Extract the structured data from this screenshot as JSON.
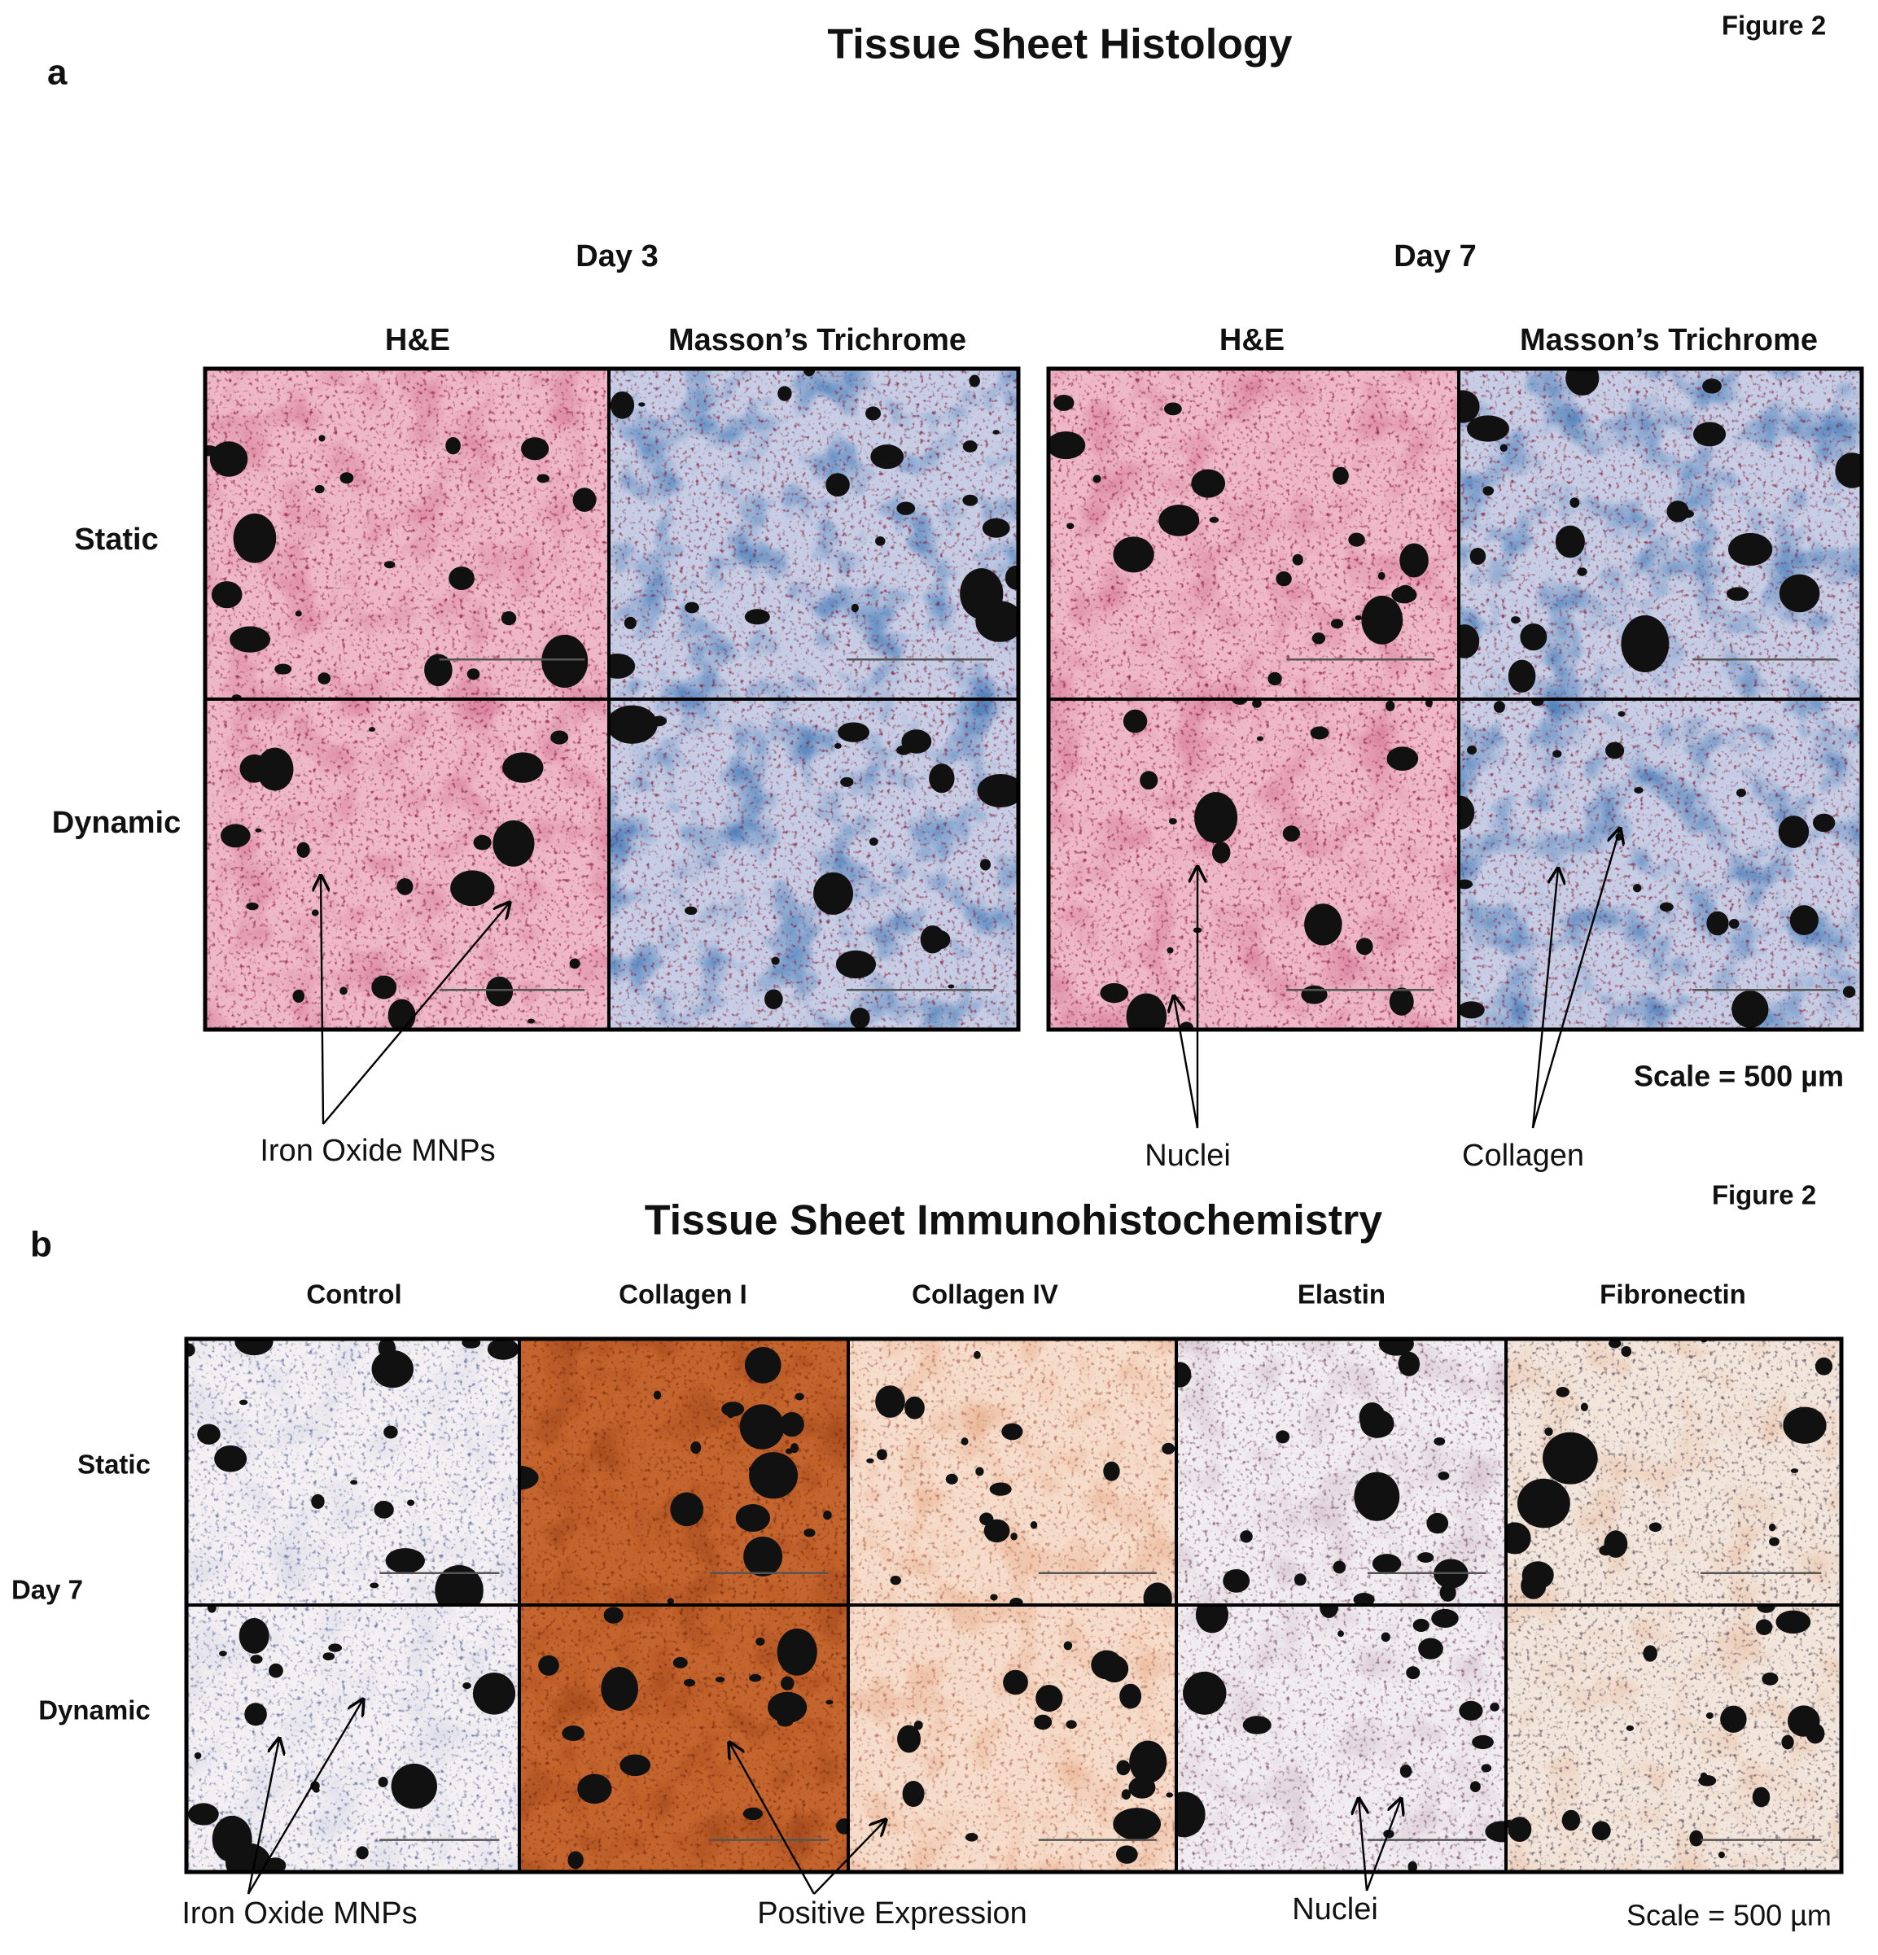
{
  "panel_a": {
    "label": "a",
    "title": "Tissue Sheet Histology",
    "figure_label": "Figure 2",
    "groups": [
      {
        "title": "Day 3",
        "columns": [
          "H&E",
          "Masson’s Trichrome"
        ]
      },
      {
        "title": "Day 7",
        "columns": [
          "H&E",
          "Masson’s Trichrome"
        ]
      }
    ],
    "rows": [
      "Static",
      "Dynamic"
    ],
    "annotations": [
      "Iron Oxide MNPs",
      "Nuclei",
      "Collagen"
    ],
    "scale": "Scale = 500 µm"
  },
  "panel_b": {
    "label": "b",
    "title": "Tissue Sheet Immunohistochemistry",
    "figure_label": "Figure 2",
    "columns": [
      "Control",
      "Collagen I",
      "Collagen IV",
      "Elastin",
      "Fibronectin"
    ],
    "group": "Day 7",
    "rows": [
      "Static",
      "Dynamic"
    ],
    "annotations": [
      "Iron Oxide MNPs",
      "Positive Expression",
      "Nuclei"
    ],
    "scale": "Scale = 500 µm"
  }
}
